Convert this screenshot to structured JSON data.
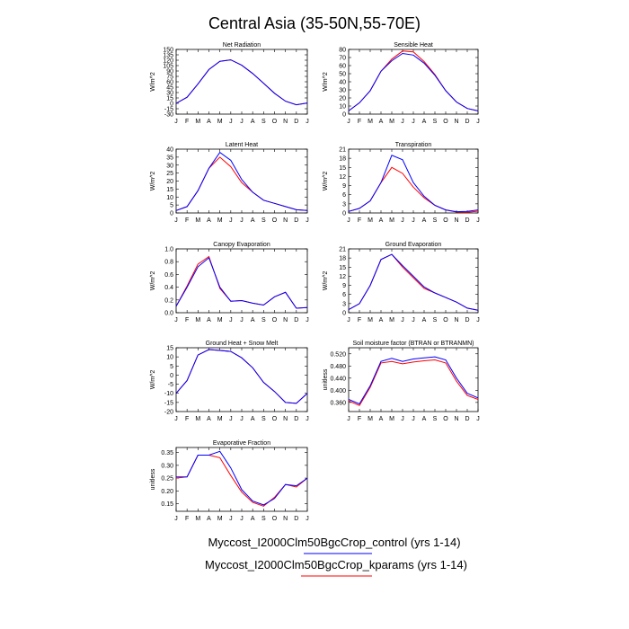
{
  "title": "Central Asia (35-50N,55-70E)",
  "colors": {
    "control": "#0000ff",
    "kparams": "#ff0000"
  },
  "legend": {
    "control_label": "Myccost_I2000Clm50BgcCrop_control (yrs 1-14)",
    "kparams_label": "Myccost_I2000Clm50BgcCrop_kparams (yrs 1-14)"
  },
  "chart_data": [
    {
      "type": "line",
      "title": "Net Radiation",
      "ylabel": "W/m^2",
      "categories": [
        "J",
        "F",
        "M",
        "A",
        "M",
        "J",
        "J",
        "A",
        "S",
        "O",
        "N",
        "D",
        "J"
      ],
      "ylim": [
        -30,
        150
      ],
      "yticks": [
        -30,
        -15,
        0,
        15,
        30,
        45,
        60,
        75,
        90,
        105,
        120,
        135,
        150
      ],
      "series": [
        {
          "key": "control",
          "values": [
            0,
            17,
            54,
            94,
            117,
            121,
            106,
            83,
            56,
            28,
            6,
            -4,
            1
          ]
        },
        {
          "key": "kparams",
          "values": [
            0,
            17,
            54,
            94,
            117,
            121,
            106,
            83,
            56,
            28,
            6,
            -4,
            1
          ]
        }
      ]
    },
    {
      "type": "line",
      "title": "Sensible Heat",
      "ylabel": "W/m^2",
      "categories": [
        "J",
        "F",
        "M",
        "A",
        "M",
        "J",
        "J",
        "A",
        "S",
        "O",
        "N",
        "D",
        "J"
      ],
      "ylim": [
        0,
        80
      ],
      "yticks": [
        0,
        10,
        20,
        30,
        40,
        50,
        60,
        70,
        80
      ],
      "series": [
        {
          "key": "control",
          "values": [
            4,
            14,
            29,
            53,
            66,
            75,
            73,
            63,
            48,
            29,
            15,
            7,
            4
          ]
        },
        {
          "key": "kparams",
          "values": [
            4,
            14,
            29,
            53,
            68,
            78,
            77,
            65,
            49,
            29,
            15,
            7,
            4
          ]
        }
      ]
    },
    {
      "type": "line",
      "title": "Latent Heat",
      "ylabel": "W/m^2",
      "categories": [
        "J",
        "F",
        "M",
        "A",
        "M",
        "J",
        "J",
        "A",
        "S",
        "O",
        "N",
        "D",
        "J"
      ],
      "ylim": [
        0,
        40
      ],
      "yticks": [
        0,
        5,
        10,
        15,
        20,
        25,
        30,
        35,
        40
      ],
      "series": [
        {
          "key": "control",
          "values": [
            1.5,
            4,
            14,
            28,
            38,
            33,
            21,
            13,
            8,
            6,
            4,
            2,
            1.5
          ]
        },
        {
          "key": "kparams",
          "values": [
            1.5,
            4,
            14,
            28,
            35,
            29,
            19,
            13,
            8,
            6,
            4,
            2,
            1.5
          ]
        }
      ]
    },
    {
      "type": "line",
      "title": "Transpiration",
      "ylabel": "W/m^2",
      "categories": [
        "J",
        "F",
        "M",
        "A",
        "M",
        "J",
        "J",
        "A",
        "S",
        "O",
        "N",
        "D",
        "J"
      ],
      "ylim": [
        0,
        21
      ],
      "yticks": [
        0,
        3,
        6,
        9,
        12,
        15,
        18,
        21
      ],
      "series": [
        {
          "key": "control",
          "values": [
            0.5,
            1.5,
            4,
            10,
            19,
            17.5,
            10,
            5.5,
            2.5,
            1,
            0.4,
            0.5,
            1
          ]
        },
        {
          "key": "kparams",
          "values": [
            0.5,
            1.5,
            4,
            10,
            15,
            13,
            8.5,
            5,
            2.5,
            1,
            0.3,
            0.2,
            0.6
          ]
        }
      ]
    },
    {
      "type": "line",
      "title": "Canopy Evaporation",
      "ylabel": "W/m^2",
      "categories": [
        "J",
        "F",
        "M",
        "A",
        "M",
        "J",
        "J",
        "A",
        "S",
        "O",
        "N",
        "D",
        "J"
      ],
      "ylim": [
        0,
        1
      ],
      "yticks": [
        0,
        0.2,
        0.4,
        0.6,
        0.8,
        1
      ],
      "ytick_labels": [
        "0.0",
        "0.2",
        "0.4",
        "0.6",
        "0.8",
        "1.0"
      ],
      "series": [
        {
          "key": "control",
          "values": [
            0.1,
            0.4,
            0.72,
            0.86,
            0.4,
            0.18,
            0.19,
            0.15,
            0.12,
            0.25,
            0.32,
            0.07,
            0.08
          ]
        },
        {
          "key": "kparams",
          "values": [
            0.1,
            0.42,
            0.76,
            0.88,
            0.38,
            0.18,
            0.19,
            0.15,
            0.12,
            0.25,
            0.32,
            0.07,
            0.08
          ]
        }
      ]
    },
    {
      "type": "line",
      "title": "Ground Evaporation",
      "ylabel": "W/m^2",
      "categories": [
        "J",
        "F",
        "M",
        "A",
        "M",
        "J",
        "J",
        "A",
        "S",
        "O",
        "N",
        "D",
        "J"
      ],
      "ylim": [
        0,
        21
      ],
      "yticks": [
        0,
        3,
        6,
        9,
        12,
        15,
        18,
        21
      ],
      "series": [
        {
          "key": "control",
          "values": [
            1,
            3,
            9,
            17.5,
            19.2,
            15.5,
            12,
            8.5,
            6.5,
            5,
            3.5,
            1.5,
            0.8
          ]
        },
        {
          "key": "kparams",
          "values": [
            1,
            3,
            9,
            17.5,
            19.2,
            15,
            11.5,
            8,
            6.5,
            5,
            3.5,
            1.5,
            0.8
          ]
        }
      ]
    },
    {
      "type": "line",
      "title": "Ground Heat + Snow Melt",
      "ylabel": "W/m^2",
      "categories": [
        "J",
        "F",
        "M",
        "A",
        "M",
        "J",
        "J",
        "A",
        "S",
        "O",
        "N",
        "D",
        "J"
      ],
      "ylim": [
        -20,
        15
      ],
      "yticks": [
        -20,
        -15,
        -10,
        -5,
        0,
        5,
        10,
        15
      ],
      "series": [
        {
          "key": "control",
          "values": [
            -10,
            -3,
            11,
            14,
            13.5,
            13,
            9.5,
            4,
            -4,
            -9,
            -15,
            -15.5,
            -10
          ]
        },
        {
          "key": "kparams",
          "values": [
            -10,
            -3,
            11,
            14,
            13.5,
            13,
            9.5,
            4,
            -4,
            -9,
            -15,
            -15.5,
            -10
          ]
        }
      ]
    },
    {
      "type": "line",
      "title": "Soil moisture factor (BTRAN or BTRANMN)",
      "ylabel": "unitless",
      "categories": [
        "J",
        "F",
        "M",
        "A",
        "M",
        "J",
        "J",
        "A",
        "S",
        "O",
        "N",
        "D",
        "J"
      ],
      "ylim": [
        0.33,
        0.54
      ],
      "yticks": [
        0.36,
        0.4,
        0.44,
        0.48,
        0.52
      ],
      "ytick_labels": [
        "0.360",
        "0.400",
        "0.440",
        "0.480",
        "0.520"
      ],
      "series": [
        {
          "key": "control",
          "values": [
            0.37,
            0.355,
            0.415,
            0.495,
            0.505,
            0.495,
            0.503,
            0.507,
            0.51,
            0.5,
            0.44,
            0.39,
            0.375
          ]
        },
        {
          "key": "kparams",
          "values": [
            0.365,
            0.35,
            0.41,
            0.49,
            0.495,
            0.487,
            0.493,
            0.497,
            0.5,
            0.49,
            0.43,
            0.383,
            0.37
          ]
        }
      ]
    },
    {
      "type": "line",
      "title": "Evaporative Fraction",
      "ylabel": "unitless",
      "categories": [
        "J",
        "F",
        "M",
        "A",
        "M",
        "J",
        "J",
        "A",
        "S",
        "O",
        "N",
        "D",
        "J"
      ],
      "ylim": [
        0.12,
        0.37
      ],
      "yticks": [
        0.15,
        0.2,
        0.25,
        0.3,
        0.35
      ],
      "ytick_labels": [
        "0.15",
        "0.20",
        "0.25",
        "0.30",
        "0.35"
      ],
      "series": [
        {
          "key": "control",
          "values": [
            0.255,
            0.255,
            0.34,
            0.34,
            0.355,
            0.29,
            0.205,
            0.16,
            0.145,
            0.17,
            0.225,
            0.22,
            0.25
          ]
        },
        {
          "key": "kparams",
          "values": [
            0.25,
            0.255,
            0.34,
            0.34,
            0.33,
            0.26,
            0.195,
            0.155,
            0.14,
            0.175,
            0.225,
            0.215,
            0.25
          ]
        }
      ]
    }
  ]
}
